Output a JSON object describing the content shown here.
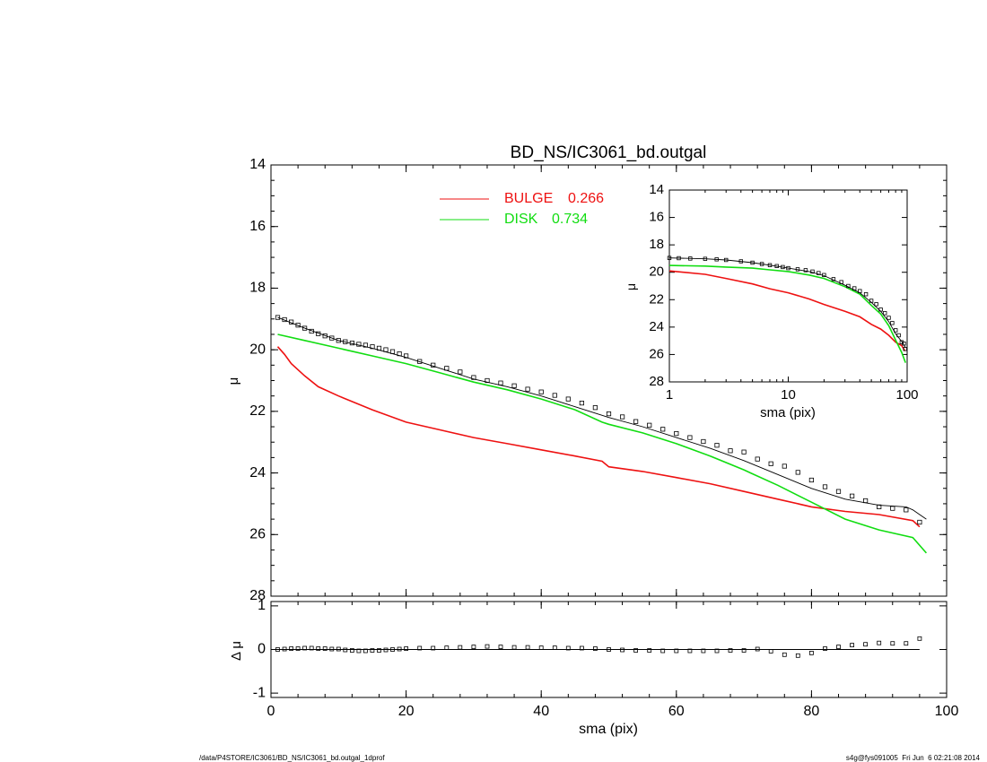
{
  "chart_data": [
    {
      "panel": "main",
      "type": "line",
      "title": "BD_NS/IC3061_bd.outgal",
      "xlabel": "",
      "ylabel": "μ",
      "xlim": [
        0,
        100
      ],
      "ylim": [
        28,
        14
      ],
      "y_inverted": true,
      "x_ticks": [
        "0",
        "20",
        "40",
        "60",
        "80",
        "100"
      ],
      "y_ticks": [
        "14",
        "16",
        "18",
        "20",
        "22",
        "24",
        "26",
        "28"
      ],
      "legend": [
        {
          "label": "BULGE",
          "value": "0.266",
          "color": "#ee1111"
        },
        {
          "label": "DISK",
          "value": "0.734",
          "color": "#11dd11"
        }
      ],
      "legend_position": "top-center",
      "series": [
        {
          "name": "BULGE",
          "color": "#ee1111",
          "style": "line",
          "x": [
            1,
            2,
            3,
            5,
            7,
            10,
            15,
            20,
            25,
            30,
            35,
            40,
            45,
            49,
            50,
            55,
            60,
            65,
            70,
            75,
            80,
            85,
            90,
            95,
            96
          ],
          "y": [
            19.9,
            20.15,
            20.45,
            20.85,
            21.2,
            21.5,
            21.95,
            22.35,
            22.6,
            22.85,
            23.05,
            23.25,
            23.45,
            23.62,
            23.8,
            23.95,
            24.15,
            24.35,
            24.6,
            24.85,
            25.1,
            25.25,
            25.35,
            25.55,
            25.75
          ]
        },
        {
          "name": "DISK",
          "color": "#11dd11",
          "style": "line",
          "x": [
            1,
            5,
            10,
            15,
            20,
            25,
            30,
            35,
            40,
            45,
            49,
            50,
            55,
            60,
            65,
            70,
            71,
            75,
            80,
            85,
            90,
            95,
            97
          ],
          "y": [
            19.5,
            19.7,
            19.95,
            20.2,
            20.45,
            20.75,
            21.05,
            21.3,
            21.6,
            21.95,
            22.35,
            22.42,
            22.7,
            23.05,
            23.45,
            23.9,
            24.0,
            24.4,
            24.95,
            25.5,
            25.85,
            26.1,
            26.6
          ]
        },
        {
          "name": "",
          "color": "#000000",
          "style": "line",
          "x": [
            1,
            5,
            10,
            15,
            20,
            25,
            30,
            35,
            40,
            45,
            50,
            55,
            60,
            65,
            70,
            75,
            80,
            85,
            90,
            94,
            95,
            96,
            97
          ],
          "y": [
            18.95,
            19.3,
            19.7,
            19.95,
            20.25,
            20.6,
            20.95,
            21.2,
            21.5,
            21.85,
            22.2,
            22.5,
            22.85,
            23.2,
            23.6,
            24.05,
            24.5,
            24.85,
            25.05,
            25.1,
            25.2,
            25.35,
            25.5
          ]
        },
        {
          "name": "",
          "color": "#000000",
          "style": "markers",
          "x": [
            1,
            2,
            3,
            4,
            5,
            6,
            7,
            8,
            9,
            10,
            11,
            12,
            13,
            14,
            15,
            16,
            17,
            18,
            19,
            20,
            22,
            24,
            26,
            28,
            30,
            32,
            34,
            36,
            38,
            40,
            42,
            44,
            46,
            48,
            50,
            52,
            54,
            56,
            58,
            60,
            62,
            64,
            66,
            68,
            70,
            72,
            74,
            76,
            78,
            80,
            82,
            84,
            86,
            88,
            90,
            92,
            94,
            96
          ],
          "y": [
            18.95,
            19.02,
            19.1,
            19.2,
            19.3,
            19.4,
            19.48,
            19.55,
            19.62,
            19.7,
            19.74,
            19.78,
            19.82,
            19.85,
            19.9,
            19.95,
            20.0,
            20.06,
            20.13,
            20.2,
            20.38,
            20.5,
            20.6,
            20.72,
            20.9,
            21.0,
            21.08,
            21.17,
            21.28,
            21.37,
            21.48,
            21.6,
            21.73,
            21.88,
            22.08,
            22.18,
            22.33,
            22.45,
            22.58,
            22.72,
            22.85,
            22.98,
            23.1,
            23.28,
            23.32,
            23.55,
            23.7,
            23.78,
            23.98,
            24.23,
            24.45,
            24.6,
            24.75,
            24.9,
            25.1,
            25.15,
            25.2,
            25.6
          ]
        }
      ]
    },
    {
      "panel": "residual",
      "type": "scatter",
      "xlabel": "sma (pix)",
      "ylabel": "Δ μ",
      "xlim": [
        0,
        100
      ],
      "ylim": [
        -1.1,
        1.1
      ],
      "x_ticks": [
        "0",
        "20",
        "40",
        "60",
        "80",
        "100"
      ],
      "y_ticks": [
        "1",
        "0",
        "-1"
      ],
      "zero_line": true,
      "series": [
        {
          "name": "",
          "color": "#000000",
          "style": "markers",
          "x": [
            1,
            2,
            3,
            4,
            5,
            6,
            7,
            8,
            9,
            10,
            11,
            12,
            13,
            14,
            15,
            16,
            17,
            18,
            19,
            20,
            22,
            24,
            26,
            28,
            30,
            32,
            34,
            36,
            38,
            40,
            42,
            44,
            46,
            48,
            50,
            52,
            54,
            56,
            58,
            60,
            62,
            64,
            66,
            68,
            70,
            72,
            74,
            76,
            78,
            80,
            82,
            84,
            86,
            88,
            90,
            92,
            94,
            96
          ],
          "y": [
            0.0,
            0.01,
            0.02,
            0.02,
            0.03,
            0.03,
            0.02,
            0.02,
            0.01,
            0.01,
            -0.01,
            -0.02,
            -0.03,
            -0.03,
            -0.02,
            -0.02,
            -0.01,
            0.0,
            0.01,
            0.02,
            0.03,
            0.03,
            0.04,
            0.05,
            0.06,
            0.07,
            0.06,
            0.05,
            0.05,
            0.04,
            0.04,
            0.03,
            0.03,
            0.02,
            0.0,
            -0.01,
            -0.02,
            -0.02,
            -0.03,
            -0.03,
            -0.03,
            -0.03,
            -0.03,
            -0.02,
            -0.02,
            0.01,
            -0.04,
            -0.12,
            -0.14,
            -0.08,
            0.02,
            0.06,
            0.1,
            0.12,
            0.15,
            0.14,
            0.14,
            0.25
          ]
        }
      ]
    },
    {
      "panel": "inset",
      "type": "line",
      "xlabel": "sma (pix)",
      "ylabel": "μ",
      "x_scale": "log",
      "xlim": [
        1,
        100
      ],
      "ylim": [
        28,
        14
      ],
      "y_inverted": true,
      "x_ticks": [
        "1",
        "10",
        "100"
      ],
      "y_ticks": [
        "14",
        "16",
        "18",
        "20",
        "22",
        "24",
        "26",
        "28"
      ],
      "series": [
        {
          "name": "BULGE",
          "color": "#ee1111",
          "style": "line",
          "x": [
            1,
            2,
            3,
            5,
            7,
            10,
            15,
            20,
            30,
            40,
            50,
            60,
            70,
            80,
            90,
            96
          ],
          "y": [
            19.9,
            20.15,
            20.45,
            20.85,
            21.2,
            21.5,
            21.95,
            22.35,
            22.85,
            23.25,
            23.8,
            24.15,
            24.6,
            25.1,
            25.35,
            25.75
          ]
        },
        {
          "name": "DISK",
          "color": "#11dd11",
          "style": "line",
          "x": [
            1,
            2,
            3,
            5,
            7,
            10,
            15,
            20,
            30,
            40,
            50,
            60,
            70,
            80,
            90,
            97
          ],
          "y": [
            19.5,
            19.55,
            19.62,
            19.7,
            19.82,
            19.95,
            20.2,
            20.45,
            21.05,
            21.6,
            22.42,
            23.05,
            23.9,
            24.95,
            25.85,
            26.6
          ]
        },
        {
          "name": "",
          "color": "#000000",
          "style": "line",
          "x": [
            1,
            2,
            3,
            5,
            7,
            10,
            15,
            20,
            30,
            40,
            50,
            60,
            70,
            80,
            90,
            97
          ],
          "y": [
            18.95,
            19.02,
            19.1,
            19.3,
            19.48,
            19.7,
            19.95,
            20.25,
            20.95,
            21.5,
            22.2,
            22.85,
            23.6,
            24.5,
            25.05,
            25.5
          ]
        },
        {
          "name": "",
          "color": "#000000",
          "style": "markers",
          "x": [
            1,
            1.2,
            1.5,
            2,
            2.5,
            3,
            4,
            5,
            6,
            7,
            8,
            9,
            10,
            12,
            14,
            16,
            18,
            20,
            24,
            28,
            32,
            36,
            40,
            45,
            50,
            55,
            60,
            65,
            70,
            75,
            80,
            85,
            90,
            94,
            96
          ],
          "y": [
            18.95,
            18.97,
            19.0,
            19.02,
            19.06,
            19.1,
            19.2,
            19.3,
            19.4,
            19.48,
            19.55,
            19.62,
            19.7,
            19.78,
            19.85,
            19.95,
            20.06,
            20.2,
            20.5,
            20.72,
            21.0,
            21.17,
            21.37,
            21.6,
            22.08,
            22.33,
            22.72,
            22.98,
            23.32,
            23.7,
            24.23,
            24.6,
            25.1,
            25.2,
            25.6
          ]
        }
      ]
    }
  ],
  "footer": {
    "left": "/data/P4STORE/IC3061/BD_NS/IC3061_bd.outgal_1dprof",
    "right": "s4g@fys091005  Fri Jun  6 02:21:08 2014"
  }
}
